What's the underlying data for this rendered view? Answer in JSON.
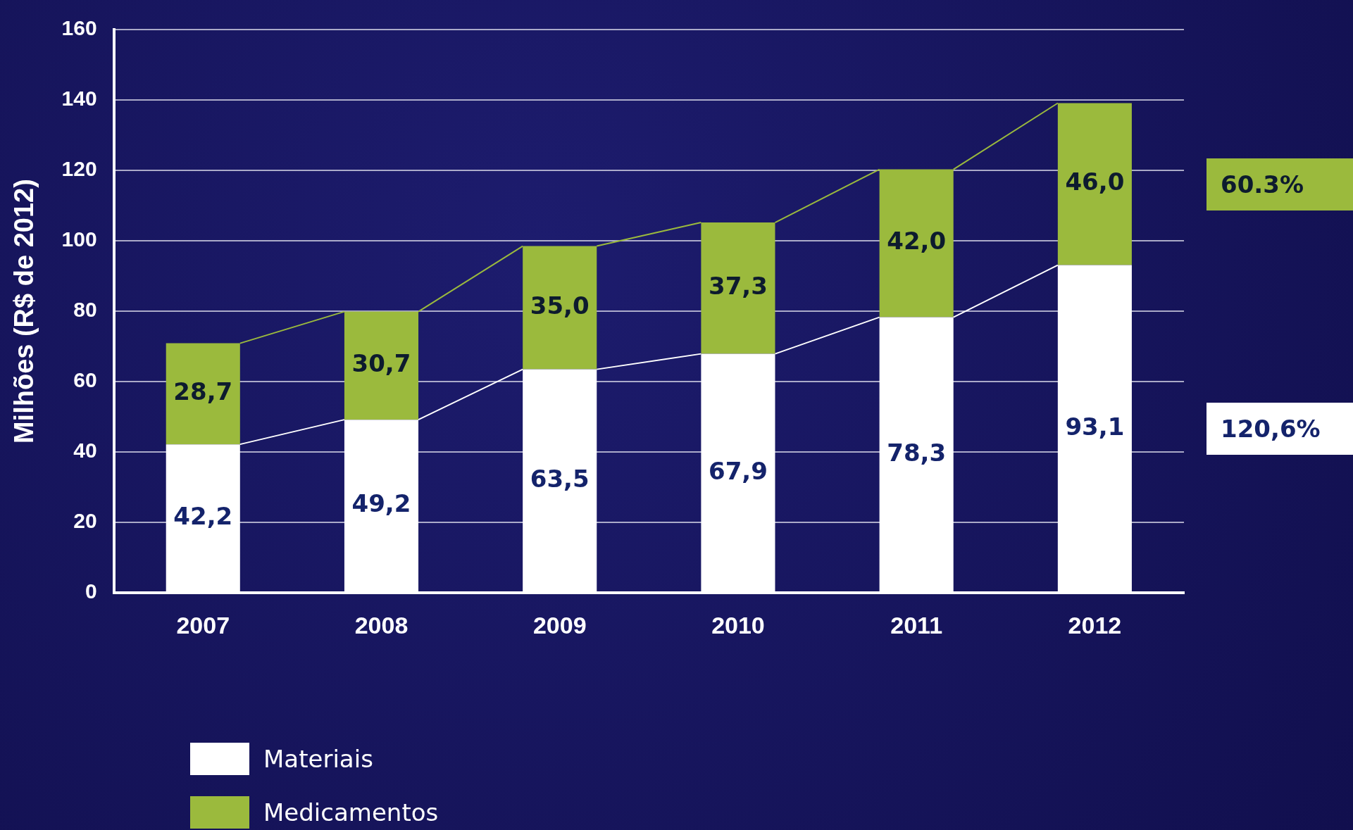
{
  "chart_data": {
    "type": "bar",
    "stacked": true,
    "ylabel": "Milhões (R$ de 2012)",
    "categories": [
      "2007",
      "2008",
      "2009",
      "2010",
      "2011",
      "2012"
    ],
    "series": [
      {
        "name": "Materiais",
        "color": "#ffffff",
        "values": [
          42.2,
          49.2,
          63.5,
          67.9,
          78.3,
          93.1
        ],
        "value_labels": [
          "42,2",
          "49,2",
          "63,5",
          "67,9",
          "78,3",
          "93,1"
        ]
      },
      {
        "name": "Medicamentos",
        "color": "#9bba3d",
        "values": [
          28.7,
          30.7,
          35.0,
          37.3,
          42.0,
          46.0
        ],
        "value_labels": [
          "28,7",
          "30,7",
          "35,0",
          "37,3",
          "42,0",
          "46,0"
        ]
      }
    ],
    "ylim": [
      0,
      160
    ],
    "yticks": [
      0,
      20,
      40,
      60,
      80,
      100,
      120,
      140,
      160
    ],
    "grid": "y",
    "legend": "bottom left",
    "annotations": [
      "120,6%",
      "60.3%"
    ]
  }
}
